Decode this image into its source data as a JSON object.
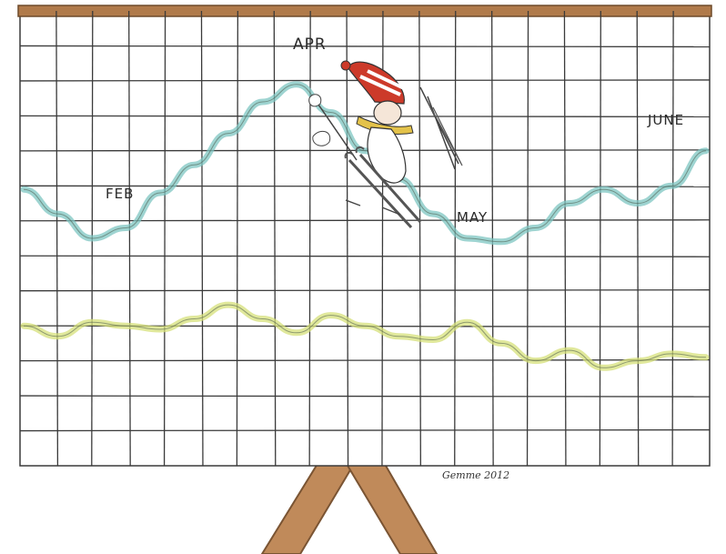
{
  "labels": {
    "apr": "APR",
    "feb": "FEB",
    "may": "MAY",
    "june": "JUNE"
  },
  "signature": "Gemme 2012",
  "colors": {
    "frame_top": "#b07a4a",
    "easel_legs": "#c08a5a",
    "grid_line": "#3a3a3a",
    "blue_line": "#7ec6c2",
    "yellow_line": "#d6e07a",
    "hat_red": "#cc3a2a",
    "scarf_yellow": "#e3c24a",
    "ski": "#555555"
  },
  "chart_data": {
    "type": "line",
    "x": [
      0,
      1,
      2,
      3,
      4,
      5,
      6,
      7,
      8,
      9,
      10,
      11,
      12,
      13,
      14,
      15,
      16,
      17,
      18,
      19,
      20
    ],
    "series": [
      {
        "color": "#7ec6c2",
        "values": [
          7.9,
          7.2,
          6.5,
          6.8,
          7.8,
          8.6,
          9.5,
          10.4,
          10.9,
          10.1,
          9.0,
          8.2,
          7.2,
          6.5,
          6.4,
          6.8,
          7.5,
          7.9,
          7.5,
          8.0,
          9.0
        ]
      },
      {
        "color": "#d6e07a",
        "values": [
          4.0,
          3.7,
          4.1,
          4.0,
          3.9,
          4.2,
          4.6,
          4.2,
          3.8,
          4.3,
          4.0,
          3.7,
          3.6,
          4.1,
          3.5,
          3.0,
          3.3,
          2.8,
          3.0,
          3.2,
          3.1
        ]
      }
    ],
    "annotations": [
      "APR",
      "FEB",
      "MAY",
      "JUNE"
    ]
  }
}
